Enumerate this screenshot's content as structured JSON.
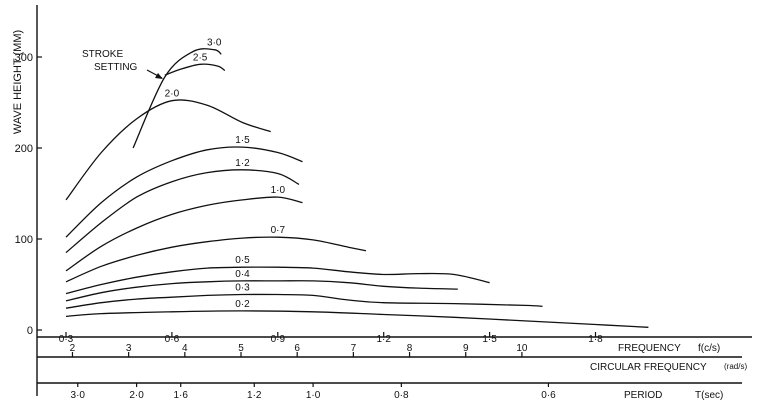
{
  "chart_data": {
    "type": "line",
    "ylabel": "WAVE HEIGHT (MM)",
    "ylim": [
      0,
      355
    ],
    "yticks": [
      0,
      100,
      200,
      300
    ],
    "xlim": [
      0.3,
      1.97
    ],
    "legend_title_line1": "STROKE",
    "legend_title_line2": "SETTING",
    "series": [
      {
        "name": "3·0",
        "x": [
          0.49,
          0.58,
          0.66,
          0.72,
          0.74
        ],
        "values": [
          200,
          278,
          306,
          308,
          303
        ]
      },
      {
        "name": "2·5",
        "x": [
          0.58,
          0.62,
          0.68,
          0.73,
          0.75
        ],
        "values": [
          280,
          286,
          292,
          290,
          285
        ]
      },
      {
        "name": "2·0",
        "x": [
          0.3,
          0.4,
          0.5,
          0.6,
          0.7,
          0.8,
          0.88
        ],
        "values": [
          143,
          195,
          232,
          252,
          247,
          228,
          218
        ]
      },
      {
        "name": "1·5",
        "x": [
          0.3,
          0.4,
          0.5,
          0.6,
          0.7,
          0.8,
          0.9,
          0.97
        ],
        "values": [
          102,
          140,
          168,
          186,
          198,
          201,
          195,
          185
        ]
      },
      {
        "name": "1·2",
        "x": [
          0.3,
          0.4,
          0.5,
          0.6,
          0.7,
          0.8,
          0.9,
          0.96
        ],
        "values": [
          85,
          118,
          146,
          163,
          173,
          176,
          172,
          160
        ]
      },
      {
        "name": "1·0",
        "x": [
          0.3,
          0.4,
          0.5,
          0.6,
          0.7,
          0.8,
          0.9,
          0.97
        ],
        "values": [
          65,
          92,
          112,
          127,
          137,
          143,
          146,
          140
        ]
      },
      {
        "name": "0·7",
        "x": [
          0.3,
          0.4,
          0.5,
          0.6,
          0.7,
          0.8,
          0.9,
          1.0,
          1.1,
          1.15
        ],
        "values": [
          53,
          70,
          82,
          91,
          97,
          101,
          102,
          99,
          91,
          87
        ]
      },
      {
        "name": "0·5",
        "x": [
          0.3,
          0.4,
          0.5,
          0.6,
          0.7,
          0.8,
          0.9,
          1.0,
          1.1,
          1.2,
          1.3,
          1.4,
          1.5
        ],
        "values": [
          40,
          50,
          58,
          64,
          68,
          69,
          69,
          68,
          64,
          61,
          62,
          61,
          52
        ]
      },
      {
        "name": "0·4",
        "x": [
          0.3,
          0.4,
          0.5,
          0.6,
          0.7,
          0.8,
          0.9,
          1.0,
          1.1,
          1.2,
          1.3,
          1.41
        ],
        "values": [
          32,
          41,
          47,
          51,
          53,
          54,
          54,
          54,
          52,
          48,
          46,
          45
        ]
      },
      {
        "name": "0·3",
        "x": [
          0.3,
          0.4,
          0.5,
          0.6,
          0.7,
          0.8,
          0.9,
          1.0,
          1.1,
          1.2,
          1.4,
          1.6,
          1.65
        ],
        "values": [
          24,
          30,
          34,
          36,
          38,
          39,
          39,
          38,
          33,
          30,
          29,
          27,
          26
        ]
      },
      {
        "name": "0·2",
        "x": [
          0.3,
          0.4,
          0.6,
          0.8,
          1.0,
          1.2,
          1.4,
          1.6,
          1.8,
          1.95
        ],
        "values": [
          15,
          18,
          20,
          21,
          20,
          17,
          14,
          10,
          6,
          3
        ]
      }
    ],
    "freq_axis": {
      "label": "FREQUENCY",
      "unit_label": "f(c/s)",
      "ticks": [
        {
          "label": "0·3",
          "value": 0.3
        },
        {
          "label": "0·6",
          "value": 0.6
        },
        {
          "label": "0·9",
          "value": 0.9
        },
        {
          "label": "1·2",
          "value": 1.2
        },
        {
          "label": "1·5",
          "value": 1.5
        },
        {
          "label": "1·8",
          "value": 1.8
        }
      ]
    },
    "circular_axis": {
      "label": "CIRCULAR FREQUENCY",
      "unit_label": "(rad/s)",
      "ticks": [
        {
          "label": "2",
          "value": 2
        },
        {
          "label": "3",
          "value": 3
        },
        {
          "label": "4",
          "value": 4
        },
        {
          "label": "5",
          "value": 5
        },
        {
          "label": "6",
          "value": 6
        },
        {
          "label": "7",
          "value": 7
        },
        {
          "label": "8",
          "value": 8
        },
        {
          "label": "9",
          "value": 9
        },
        {
          "label": "10",
          "value": 10
        }
      ]
    },
    "period_axis": {
      "label": "PERIOD",
      "unit_label": "T(sec)",
      "ticks": [
        {
          "label": "3·0",
          "value": 3.0
        },
        {
          "label": "2·0",
          "value": 2.0
        },
        {
          "label": "1·6",
          "value": 1.6
        },
        {
          "label": "1·2",
          "value": 1.2
        },
        {
          "label": "1·0",
          "value": 1.0
        },
        {
          "label": "0·8",
          "value": 0.8
        },
        {
          "label": "0·6",
          "value": 0.6
        }
      ]
    },
    "grid": false
  }
}
